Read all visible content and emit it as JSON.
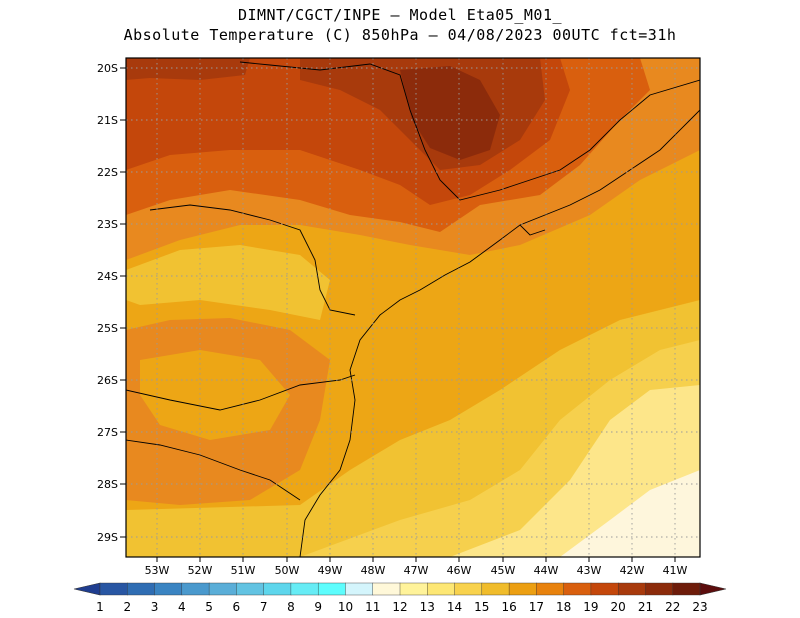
{
  "title": {
    "line1": "DIMNT/CGCT/INPE –  Model Eta05_M01_",
    "line2": "Absolute Temperature (C) 850hPa –  04/08/2023 00UTC fct=31h"
  },
  "map": {
    "lon_range": [
      -53.9,
      -40.6
    ],
    "lat_range": [
      -29.4,
      -19.8
    ],
    "lat_labels": [
      "20S",
      "21S",
      "22S",
      "23S",
      "24S",
      "25S",
      "26S",
      "27S",
      "28S",
      "29S"
    ],
    "lon_labels": [
      "53W",
      "52W",
      "51W",
      "50W",
      "49W",
      "48W",
      "47W",
      "46W",
      "45W",
      "44W",
      "43W",
      "42W",
      "41W"
    ],
    "colors": {
      "t13": "#fde68a",
      "t14": "#f6d04d",
      "t15": "#f1c232",
      "t16": "#eda615",
      "t17": "#e8891f",
      "t18": "#d95f0e",
      "t19": "#c4470b",
      "t20": "#a83a0c",
      "t21": "#8c2b0b",
      "bg": "#fef6dc"
    }
  },
  "colorbar": {
    "labels": [
      "1",
      "2",
      "3",
      "4",
      "5",
      "6",
      "7",
      "8",
      "9",
      "10",
      "11",
      "12",
      "13",
      "14",
      "15",
      "16",
      "17",
      "18",
      "19",
      "20",
      "21",
      "22",
      "23"
    ],
    "colors": [
      "#1f3d8f",
      "#2856a3",
      "#2f6db3",
      "#3a84c2",
      "#4a99cd",
      "#5aaed8",
      "#62c3e2",
      "#5ed6ec",
      "#66ecf5",
      "#5dfdfd",
      "#d4f5fc",
      "#fff8d9",
      "#fff39a",
      "#fde774",
      "#f8d24d",
      "#f0bc2b",
      "#ec9f12",
      "#e8820d",
      "#d95f0e",
      "#c4470b",
      "#a83a0c",
      "#8c2b0b",
      "#6e1c0a",
      "#5c0d0d"
    ]
  }
}
